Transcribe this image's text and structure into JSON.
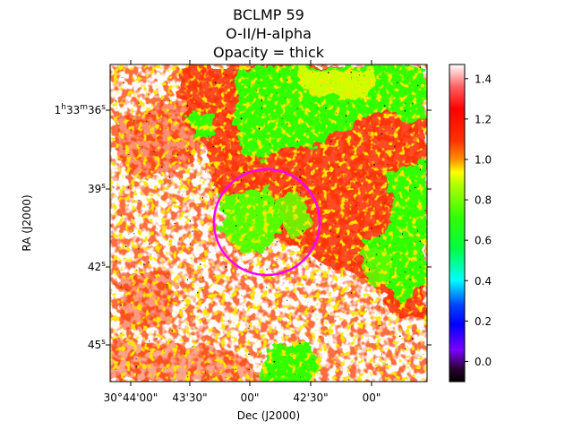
{
  "chart_data": {
    "type": "heatmap",
    "title": [
      "BCLMP 59",
      "O-II/H-alpha",
      "Opacity = thick"
    ],
    "xlabel": "Dec (J2000)",
    "ylabel": "RA (J2000)",
    "x_ticks": [
      "30°44'00\"",
      "43'30\"",
      "00\"",
      "42'30\"",
      "00\""
    ],
    "y_ticks": [
      {
        "base": "1",
        "h": "h",
        "mid": "33",
        "m": "m",
        "sec": "36",
        "s": "s"
      },
      {
        "base": "39",
        "s": "s"
      },
      {
        "base": "42",
        "s": "s"
      },
      {
        "base": "45",
        "s": "s"
      }
    ],
    "colorbar": {
      "colormap": "hsv-like (black-purple-blue-cyan-green-yellow-red-white)",
      "range": [
        -0.1,
        1.47
      ],
      "ticks": [
        "0.0",
        "0.2",
        "0.4",
        "0.6",
        "0.8",
        "1.0",
        "1.2",
        "1.4"
      ],
      "tick_values": [
        0.0,
        0.2,
        0.4,
        0.6,
        0.8,
        1.0,
        1.2,
        1.4
      ]
    },
    "circle": {
      "color": "#ff00ff"
    },
    "grid": false
  }
}
